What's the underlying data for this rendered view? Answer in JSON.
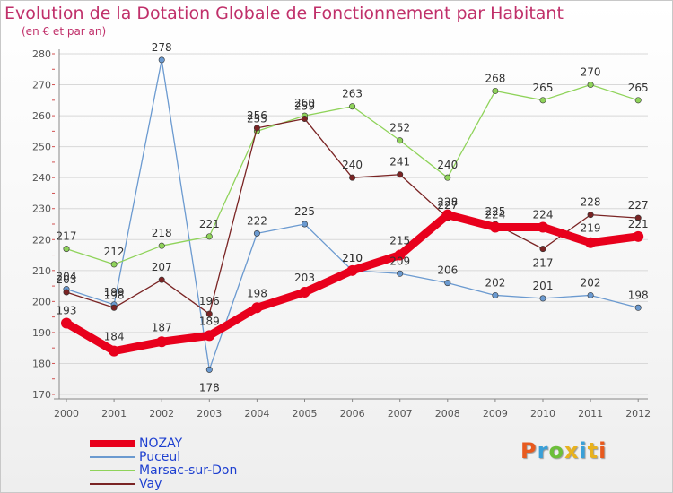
{
  "header": {
    "title": "Evolution de la Dotation Globale de Fonctionnement par Habitant",
    "subtitle": "(en € et par an)"
  },
  "logo": {
    "text": "Proxiti",
    "colors": [
      "#e85a1e",
      "#3aa0d8",
      "#6cbf3a",
      "#e8b21e",
      "#3aa0d8",
      "#e8b21e",
      "#e85a1e"
    ]
  },
  "colors": {
    "title": "#c0306a",
    "axis": "#555555",
    "grid": "#d8d8d8"
  },
  "chart_data": {
    "type": "line",
    "x": [
      "2000",
      "2001",
      "2002",
      "2003",
      "2004",
      "2005",
      "2006",
      "2007",
      "2008",
      "2009",
      "2010",
      "2011",
      "2012"
    ],
    "ylim": [
      170,
      280
    ],
    "yticks": [
      170,
      180,
      190,
      200,
      210,
      220,
      230,
      240,
      250,
      260,
      270,
      280
    ],
    "grid": "horizontal",
    "legend_position": "bottom-left",
    "series": [
      {
        "name": "NOZAY",
        "color": "#e8001c",
        "labelColor": "#e8001c",
        "values": [
          193,
          184,
          187,
          189,
          198,
          203,
          210,
          215,
          228,
          224,
          224,
          219,
          221
        ],
        "labels": [
          "193",
          "184",
          "187",
          "189",
          "198",
          "203",
          "210",
          "215",
          "228",
          "224",
          "224",
          "219",
          "221"
        ]
      },
      {
        "name": "Puceul",
        "color": "#6b9ad0",
        "labelColor": "#4b7ac0",
        "values": [
          204,
          199,
          278,
          178,
          222,
          225,
          210,
          209,
          206,
          202,
          201,
          202,
          198
        ],
        "labels": [
          "204",
          "199",
          "278",
          "178",
          "222",
          "225",
          "210",
          "209",
          "206",
          "202",
          "201",
          "202",
          "198"
        ]
      },
      {
        "name": "Marsac-sur-Don",
        "color": "#8fd35a",
        "labelColor": "#6cb03a",
        "values": [
          217,
          212,
          218,
          221,
          255,
          260,
          263,
          252,
          240,
          268,
          265,
          270,
          265
        ],
        "labels": [
          "217",
          "212",
          "218",
          "221",
          "255",
          "260",
          "263",
          "252",
          "240",
          "268",
          "265",
          "270",
          "265"
        ]
      },
      {
        "name": "Vay",
        "color": "#7a2424",
        "labelColor": "#6a1a1a",
        "values": [
          203,
          198,
          207,
          196,
          256,
          259,
          240,
          241,
          227,
          225,
          217,
          228,
          227
        ],
        "labels": [
          "203",
          "198",
          "207",
          "196",
          "256",
          "259",
          "240",
          "241",
          "227",
          "225",
          "217",
          "228",
          "227"
        ]
      }
    ]
  }
}
